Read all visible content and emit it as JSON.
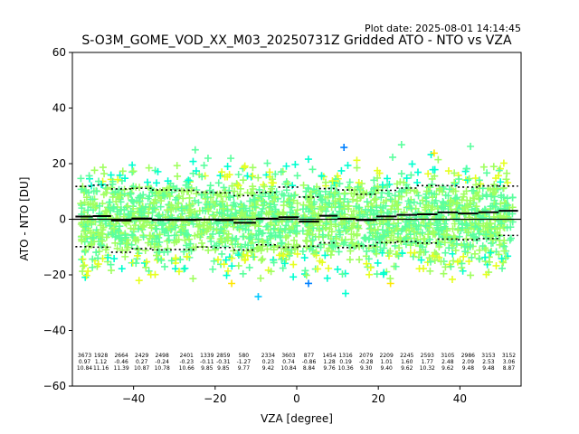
{
  "chart_data": {
    "type": "scatter",
    "title": "S-O3M_GOME_VOD_XX_M03_20250731Z Gridded ATO - NTO vs VZA",
    "plot_date": "Plot date: 2025-08-01 14:14:45",
    "xlabel": "VZA [degree]",
    "ylabel": "ATO - NTO [DU]",
    "xlim": [
      -55,
      55
    ],
    "ylim": [
      -60,
      60
    ],
    "xticks": [
      -40,
      -20,
      0,
      20,
      40
    ],
    "yticks": [
      -60,
      -40,
      -20,
      0,
      20,
      40,
      60
    ],
    "marker": "+",
    "point_colors": [
      "#0000ff",
      "#0080ff",
      "#00c8ff",
      "#00ffd0",
      "#5aff9e",
      "#a0ff60",
      "#e6ff20",
      "#ffe600"
    ],
    "mean_line_color": "#000000",
    "bins": [
      {
        "x": -52,
        "count": "3673",
        "mean": "0.97",
        "sd": "10.84"
      },
      {
        "x": -48,
        "count": "1928",
        "mean": "1.12",
        "sd": "11.16"
      },
      {
        "x": -43,
        "count": "2664",
        "mean": "-0.46",
        "sd": "11.39"
      },
      {
        "x": -38,
        "count": "2429",
        "mean": "0.27",
        "sd": "10.87"
      },
      {
        "x": -33,
        "count": "2498",
        "mean": "-0.24",
        "sd": "10.78"
      },
      {
        "x": -27,
        "count": "2401",
        "mean": "-0.23",
        "sd": "10.66"
      },
      {
        "x": -22,
        "count": "1339",
        "mean": "-0.11",
        "sd": "9.85"
      },
      {
        "x": -18,
        "count": "2859",
        "mean": "-0.31",
        "sd": "9.85"
      },
      {
        "x": -13,
        "count": "580",
        "mean": "-1.27",
        "sd": "9.77"
      },
      {
        "x": -7,
        "count": "2334",
        "mean": "0.23",
        "sd": "9.42"
      },
      {
        "x": -2,
        "count": "3603",
        "mean": "0.74",
        "sd": "10.84"
      },
      {
        "x": 3,
        "count": "877",
        "mean": "-0.86",
        "sd": "8.84"
      },
      {
        "x": 8,
        "count": "1454",
        "mean": "1.28",
        "sd": "9.76"
      },
      {
        "x": 12,
        "count": "1316",
        "mean": "0.19",
        "sd": "10.36"
      },
      {
        "x": 17,
        "count": "2079",
        "mean": "-0.28",
        "sd": "9.30"
      },
      {
        "x": 22,
        "count": "2209",
        "mean": "1.01",
        "sd": "9.40"
      },
      {
        "x": 27,
        "count": "2245",
        "mean": "1.60",
        "sd": "9.62"
      },
      {
        "x": 32,
        "count": "2593",
        "mean": "1.77",
        "sd": "10.32"
      },
      {
        "x": 37,
        "count": "3105",
        "mean": "2.48",
        "sd": "9.62"
      },
      {
        "x": 42,
        "count": "2986",
        "mean": "2.09",
        "sd": "9.48"
      },
      {
        "x": 47,
        "count": "3153",
        "mean": "2.53",
        "sd": "9.48"
      },
      {
        "x": 52,
        "count": "3152",
        "mean": "3.06",
        "sd": "8.87"
      }
    ]
  }
}
